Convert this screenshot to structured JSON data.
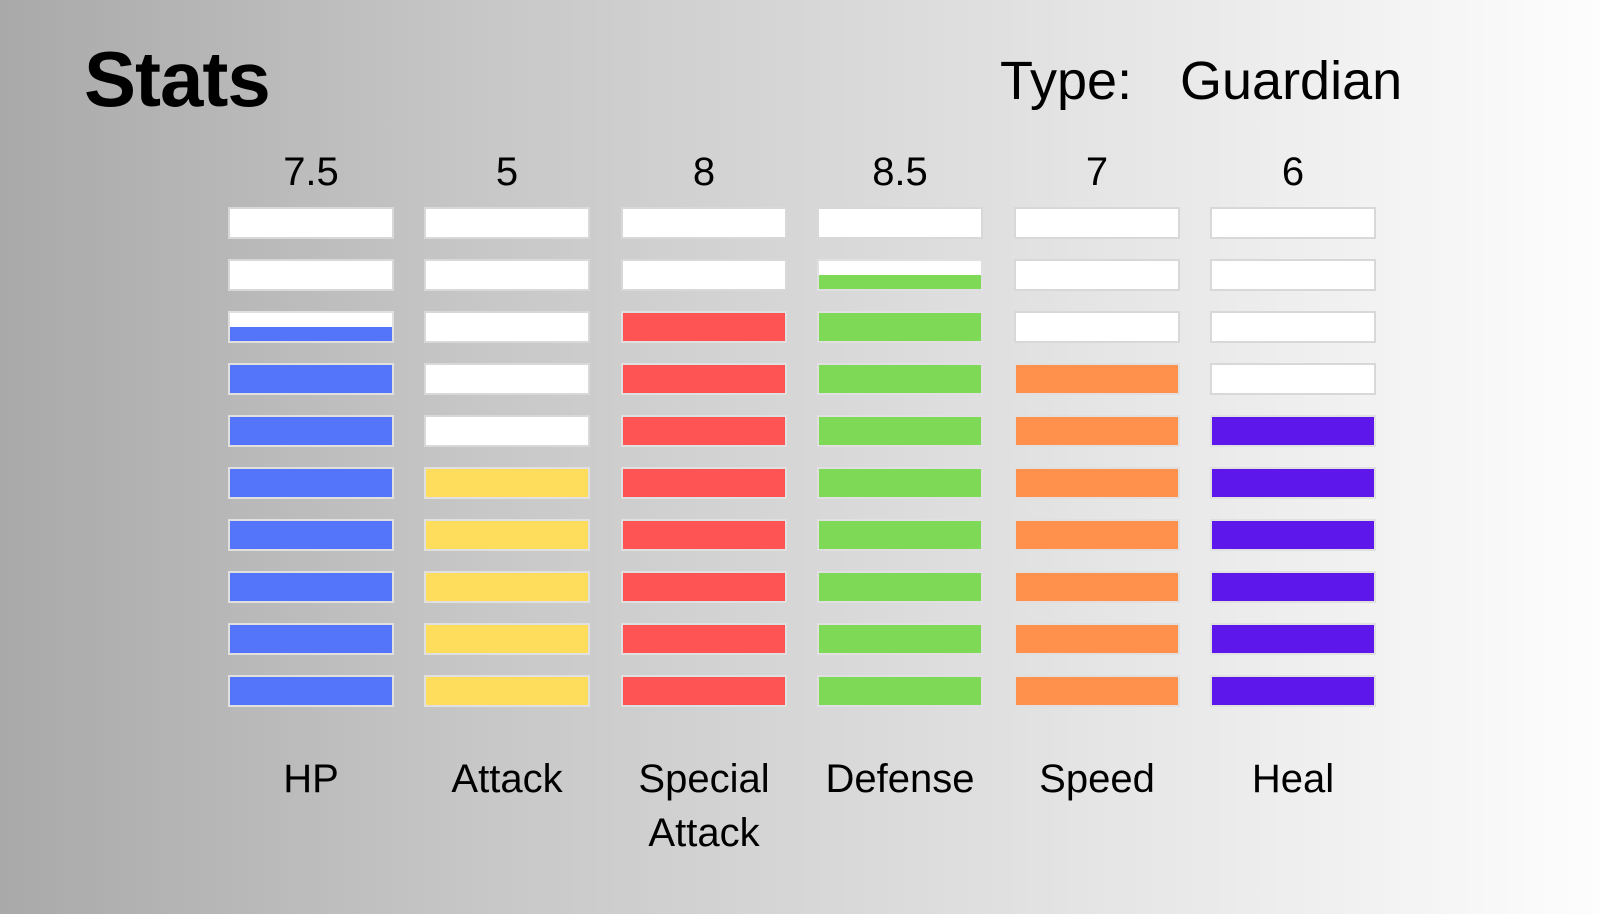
{
  "header": {
    "title": "Stats",
    "type_label": "Type:",
    "type_value": "Guardian"
  },
  "chart_data": {
    "type": "bar",
    "title": "Stats",
    "categories": [
      "HP",
      "Attack",
      "Special Attack",
      "Defense",
      "Speed",
      "Heal"
    ],
    "values": [
      7.5,
      5,
      8,
      8.5,
      7,
      6
    ],
    "value_labels": [
      "7.5",
      "5",
      "8",
      "8.5",
      "7",
      "6"
    ],
    "ylim": [
      0,
      10
    ],
    "colors": [
      "#5475f9",
      "#fedd5c",
      "#fe5454",
      "#7ed957",
      "#ff914d",
      "#5e17eb"
    ],
    "grid": false,
    "legend": "none"
  },
  "stats": [
    {
      "label": "HP",
      "value_label": "7.5"
    },
    {
      "label": "Attack",
      "value_label": "5"
    },
    {
      "label": "Special Attack",
      "value_label": "8"
    },
    {
      "label": "Defense",
      "value_label": "8.5"
    },
    {
      "label": "Speed",
      "value_label": "7"
    },
    {
      "label": "Heal",
      "value_label": "6"
    }
  ]
}
